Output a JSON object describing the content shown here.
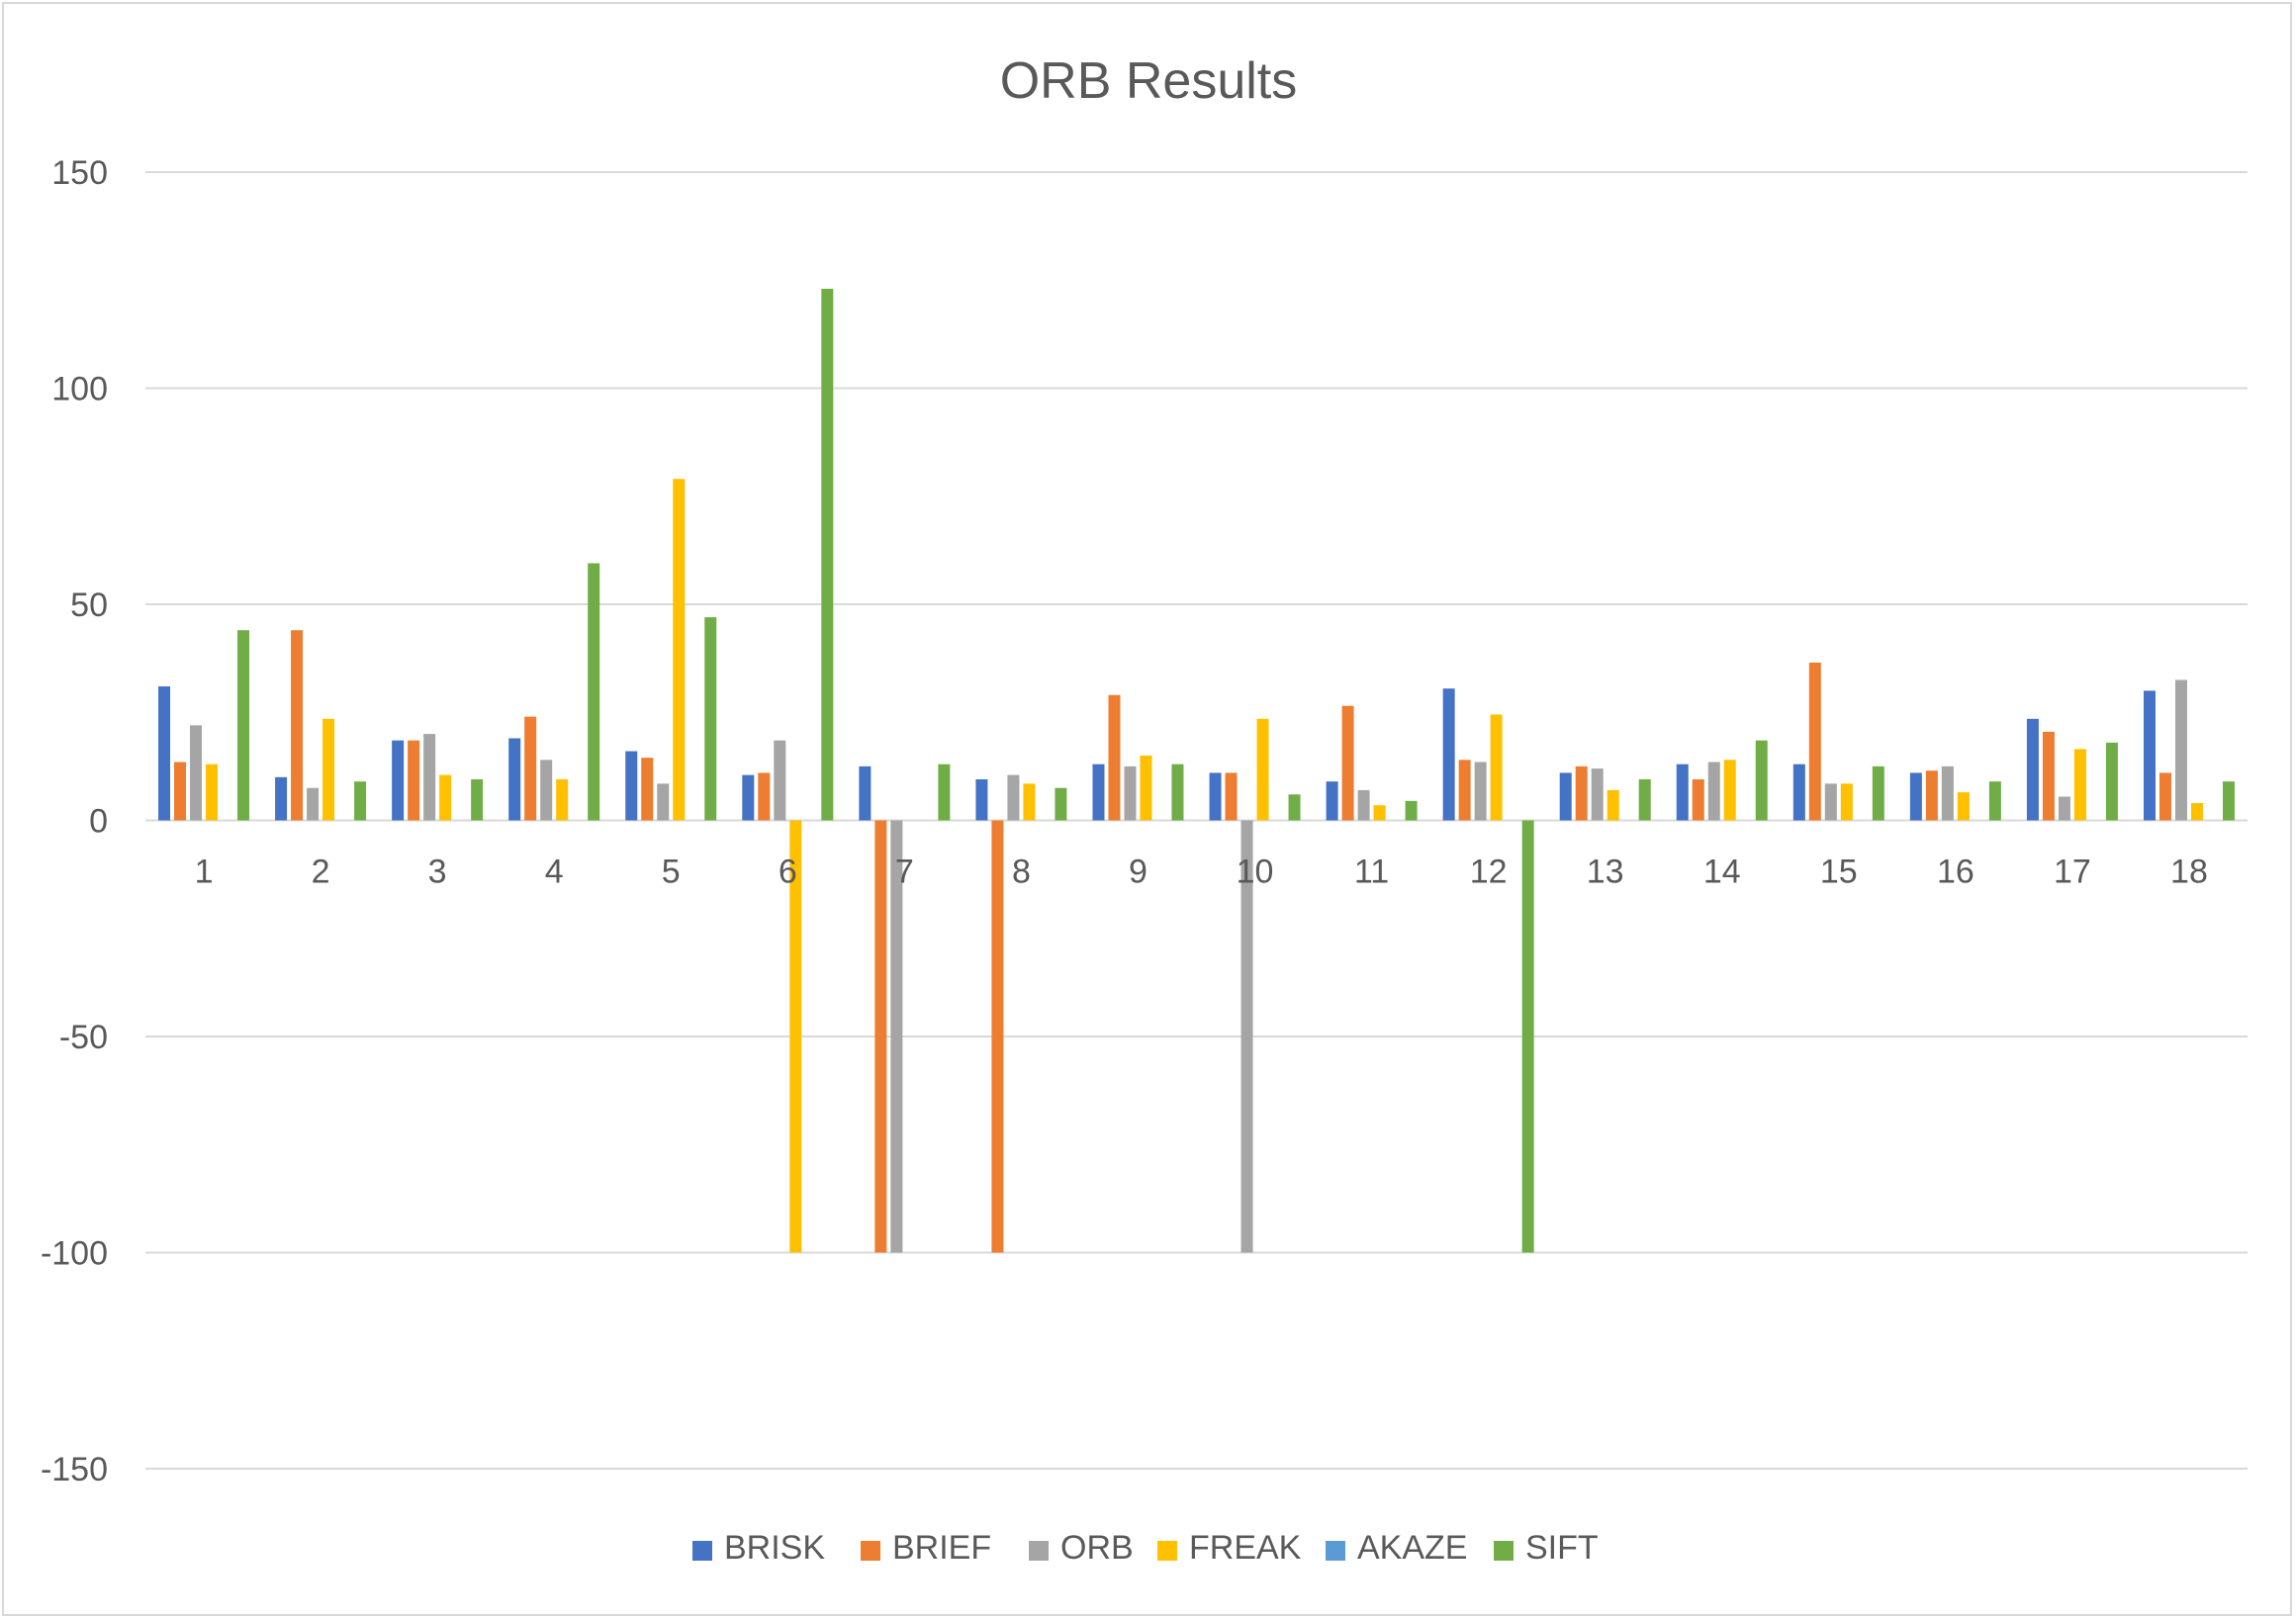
{
  "chart_data": {
    "type": "bar",
    "title": "ORB Results",
    "xlabel": "",
    "ylabel": "",
    "ylim": [
      -150,
      150
    ],
    "yticks": [
      150,
      100,
      50,
      0,
      -50,
      -100,
      -150
    ],
    "grid": true,
    "legend_position": "bottom",
    "categories": [
      "1",
      "2",
      "3",
      "4",
      "5",
      "6",
      "7",
      "8",
      "9",
      "10",
      "11",
      "12",
      "13",
      "14",
      "15",
      "16",
      "17",
      "18"
    ],
    "series": [
      {
        "name": "BRISK",
        "color": "#4472c4",
        "values": [
          31,
          10,
          18.5,
          19,
          16,
          10.5,
          12.5,
          9.5,
          13,
          11,
          9,
          30.5,
          11,
          13,
          13,
          11,
          23.5,
          30
        ]
      },
      {
        "name": "BRIEF",
        "color": "#ed7d31",
        "values": [
          13.5,
          44,
          18.5,
          24,
          14.5,
          11,
          -100,
          -100,
          29,
          11,
          26.5,
          14,
          12.5,
          9.5,
          36.5,
          11.5,
          20.5,
          11
        ]
      },
      {
        "name": "ORB",
        "color": "#a5a5a5",
        "values": [
          22,
          7.5,
          20,
          14,
          8.5,
          18.5,
          -100,
          10.5,
          12.5,
          -100,
          7,
          13.5,
          12,
          13.5,
          8.5,
          12.5,
          5.5,
          32.5
        ]
      },
      {
        "name": "FREAK",
        "color": "#ffc000",
        "values": [
          13,
          23.5,
          10.5,
          9.5,
          79,
          -100,
          null,
          8.5,
          15,
          23.5,
          3.5,
          24.5,
          7,
          14,
          8.5,
          6.5,
          16.5,
          4
        ]
      },
      {
        "name": "AKAZE",
        "color": "#5b9bd5",
        "values": [
          null,
          null,
          null,
          null,
          null,
          null,
          null,
          null,
          null,
          null,
          null,
          null,
          null,
          null,
          null,
          null,
          null,
          null
        ]
      },
      {
        "name": "SIFT",
        "color": "#70ad47",
        "values": [
          44,
          9,
          9.5,
          59.5,
          47,
          123,
          13,
          7.5,
          13,
          6,
          4.5,
          -100,
          9.5,
          18.5,
          12.5,
          9,
          18,
          9
        ]
      }
    ]
  }
}
